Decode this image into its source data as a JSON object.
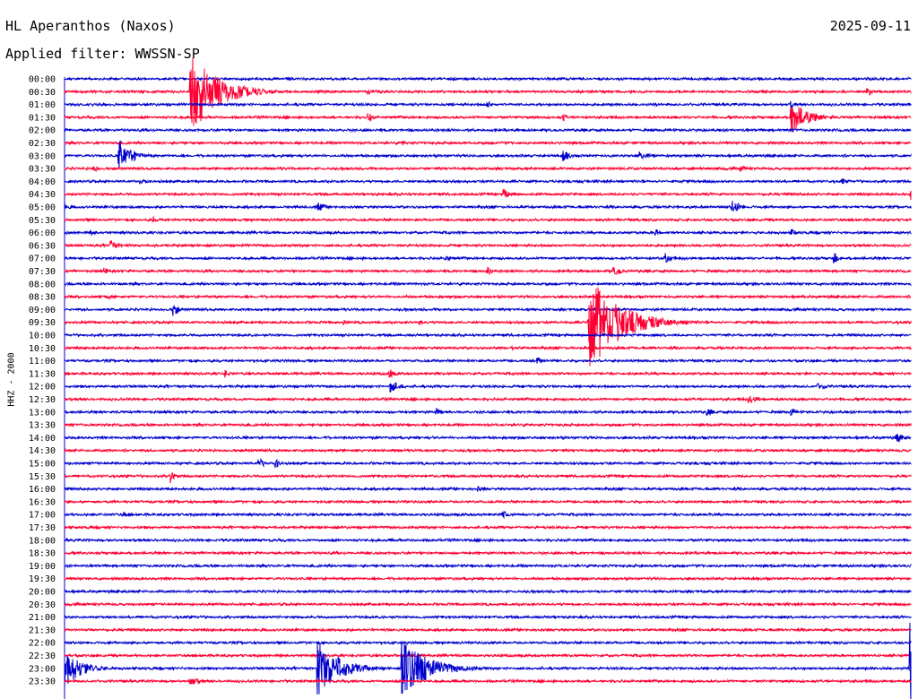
{
  "header": {
    "station": "HL Aperanthos (Naxos)",
    "date": "2025-09-11",
    "filter": "Applied filter: WWSSN-SP"
  },
  "chart_data": {
    "type": "line",
    "title": "HL Aperanthos (Naxos)",
    "date": "2025-09-11",
    "filter": "WWSSN-SP",
    "ylabel": "HHZ - 2000",
    "rows": [
      "00:00",
      "00:30",
      "01:00",
      "01:30",
      "02:00",
      "02:30",
      "03:00",
      "03:30",
      "04:00",
      "04:30",
      "05:00",
      "05:30",
      "06:00",
      "06:30",
      "07:00",
      "07:30",
      "08:00",
      "08:30",
      "09:00",
      "09:30",
      "10:00",
      "10:30",
      "11:00",
      "11:30",
      "12:00",
      "12:30",
      "13:00",
      "13:30",
      "14:00",
      "14:30",
      "15:00",
      "15:30",
      "16:00",
      "16:30",
      "17:00",
      "17:30",
      "18:00",
      "18:30",
      "19:00",
      "19:30",
      "20:00",
      "20:30",
      "21:00",
      "21:30",
      "22:00",
      "22:30",
      "23:00",
      "23:30"
    ],
    "trace_colors": [
      "#0000cc",
      "#ff0033"
    ],
    "axis_color": "#0000cc",
    "events": [
      {
        "row": 1,
        "t": 0.155,
        "amp": 6,
        "decay": 0.004
      },
      {
        "row": 1,
        "t": 0.36,
        "amp": 4,
        "decay": 0.004
      },
      {
        "row": 1,
        "t": 0.95,
        "amp": 5,
        "decay": 0.004
      },
      {
        "row": 1,
        "t": 0.15,
        "amp": 48,
        "decay": 0.03
      },
      {
        "row": 2,
        "t": 0.5,
        "amp": 4,
        "decay": 0.006
      },
      {
        "row": 2,
        "t": 0.86,
        "amp": 4,
        "decay": 0.004
      },
      {
        "row": 3,
        "t": 0.86,
        "amp": 18,
        "decay": 0.02
      },
      {
        "row": 3,
        "t": 0.36,
        "amp": 5,
        "decay": 0.008
      },
      {
        "row": 3,
        "t": 0.59,
        "amp": 4,
        "decay": 0.004
      },
      {
        "row": 5,
        "t": 0.4,
        "amp": 3,
        "decay": 0.004
      },
      {
        "row": 6,
        "t": 0.065,
        "amp": 18,
        "decay": 0.015
      },
      {
        "row": 6,
        "t": 0.59,
        "amp": 7,
        "decay": 0.008
      },
      {
        "row": 6,
        "t": 0.68,
        "amp": 5,
        "decay": 0.01
      },
      {
        "row": 7,
        "t": 0.035,
        "amp": 4,
        "decay": 0.006
      },
      {
        "row": 7,
        "t": 0.8,
        "amp": 4,
        "decay": 0.006
      },
      {
        "row": 8,
        "t": 0.09,
        "amp": 4,
        "decay": 0.008
      },
      {
        "row": 8,
        "t": 0.92,
        "amp": 3,
        "decay": 0.01
      },
      {
        "row": 9,
        "t": 0.52,
        "amp": 6,
        "decay": 0.008
      },
      {
        "row": 9,
        "t": 1.0,
        "amp": 7,
        "decay": 0.004
      },
      {
        "row": 10,
        "t": 0.0,
        "amp": 5,
        "decay": 0.006
      },
      {
        "row": 10,
        "t": 0.3,
        "amp": 5,
        "decay": 0.01
      },
      {
        "row": 10,
        "t": 0.79,
        "amp": 8,
        "decay": 0.008
      },
      {
        "row": 11,
        "t": 0.105,
        "amp": 4,
        "decay": 0.008
      },
      {
        "row": 12,
        "t": 0.032,
        "amp": 4,
        "decay": 0.005
      },
      {
        "row": 12,
        "t": 0.7,
        "amp": 4,
        "decay": 0.006
      },
      {
        "row": 12,
        "t": 0.86,
        "amp": 4,
        "decay": 0.006
      },
      {
        "row": 13,
        "t": 0.055,
        "amp": 7,
        "decay": 0.008
      },
      {
        "row": 14,
        "t": 0.71,
        "amp": 6,
        "decay": 0.008
      },
      {
        "row": 14,
        "t": 0.91,
        "amp": 6,
        "decay": 0.006
      },
      {
        "row": 14,
        "t": 0.45,
        "amp": 3,
        "decay": 0.01
      },
      {
        "row": 15,
        "t": 0.048,
        "amp": 5,
        "decay": 0.006
      },
      {
        "row": 15,
        "t": 0.65,
        "amp": 5,
        "decay": 0.01
      },
      {
        "row": 15,
        "t": 0.5,
        "amp": 5,
        "decay": 0.006
      },
      {
        "row": 17,
        "t": 0.052,
        "amp": 4,
        "decay": 0.004
      },
      {
        "row": 18,
        "t": 0.13,
        "amp": 8,
        "decay": 0.004
      },
      {
        "row": 19,
        "t": 0.62,
        "amp": 55,
        "decay": 0.035
      },
      {
        "row": 19,
        "t": 0.33,
        "amp": 3,
        "decay": 0.006
      },
      {
        "row": 19,
        "t": 0.42,
        "amp": 3,
        "decay": 0.006
      },
      {
        "row": 21,
        "t": 0.53,
        "amp": 3,
        "decay": 0.008
      },
      {
        "row": 22,
        "t": 0.56,
        "amp": 4,
        "decay": 0.008
      },
      {
        "row": 23,
        "t": 0.19,
        "amp": 5,
        "decay": 0.006
      },
      {
        "row": 23,
        "t": 0.385,
        "amp": 5,
        "decay": 0.006
      },
      {
        "row": 24,
        "t": 0.385,
        "amp": 7,
        "decay": 0.012
      },
      {
        "row": 24,
        "t": 0.89,
        "amp": 4,
        "decay": 0.012
      },
      {
        "row": 25,
        "t": 0.81,
        "amp": 5,
        "decay": 0.01
      },
      {
        "row": 26,
        "t": 0.44,
        "amp": 5,
        "decay": 0.006
      },
      {
        "row": 26,
        "t": 0.76,
        "amp": 6,
        "decay": 0.005
      },
      {
        "row": 26,
        "t": 0.86,
        "amp": 5,
        "decay": 0.005
      },
      {
        "row": 28,
        "t": 0.985,
        "amp": 5,
        "decay": 0.008
      },
      {
        "row": 30,
        "t": 0.23,
        "amp": 6,
        "decay": 0.008
      },
      {
        "row": 30,
        "t": 0.25,
        "amp": 5,
        "decay": 0.006
      },
      {
        "row": 31,
        "t": 0.125,
        "amp": 8,
        "decay": 0.005
      },
      {
        "row": 32,
        "t": 0.49,
        "amp": 3,
        "decay": 0.008
      },
      {
        "row": 34,
        "t": 0.07,
        "amp": 3,
        "decay": 0.01
      },
      {
        "row": 34,
        "t": 0.52,
        "amp": 4,
        "decay": 0.006
      },
      {
        "row": 46,
        "t": 0.0,
        "amp": 22,
        "decay": 0.02
      },
      {
        "row": 46,
        "t": 0.3,
        "amp": 32,
        "decay": 0.025
      },
      {
        "row": 46,
        "t": 0.4,
        "amp": 32,
        "decay": 0.03
      },
      {
        "row": 47,
        "t": 0.15,
        "amp": 6,
        "decay": 0.008
      },
      {
        "row": 46,
        "t": 1.0,
        "amp": 60,
        "decay": 0.003
      }
    ]
  }
}
